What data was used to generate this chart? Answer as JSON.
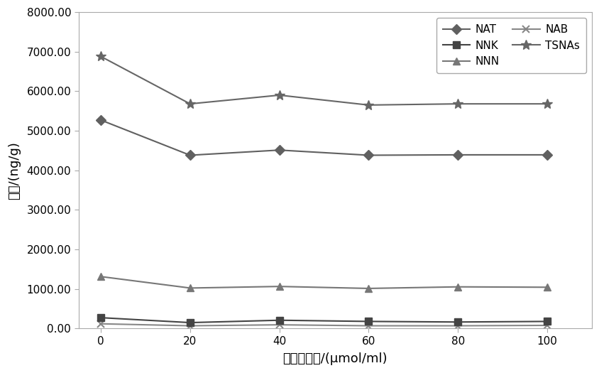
{
  "x": [
    0,
    20,
    40,
    60,
    80,
    100
  ],
  "NAT": [
    5270,
    4380,
    4510,
    4380,
    4390,
    4390
  ],
  "NNN": [
    1310,
    1020,
    1060,
    1010,
    1050,
    1040
  ],
  "NNK": [
    270,
    145,
    205,
    175,
    160,
    175
  ],
  "NAB": [
    115,
    65,
    90,
    65,
    65,
    75
  ],
  "TSNAs": [
    6880,
    5680,
    5900,
    5650,
    5680,
    5680
  ],
  "xlabel": "褮黑素浓度/(μmol/ml)",
  "ylabel": "含量/(ng/g)",
  "ylim": [
    0,
    8000
  ],
  "yticks": [
    0,
    1000,
    2000,
    3000,
    4000,
    5000,
    6000,
    7000,
    8000
  ],
  "ytick_labels": [
    "0.00",
    "1000.00",
    "2000.00",
    "3000.00",
    "4000.00",
    "5000.00",
    "6000.00",
    "7000.00",
    "8000.00"
  ],
  "bg_color": "#ffffff",
  "line_color_dark": "#555555",
  "line_color_mid": "#777777",
  "line_color_light": "#999999"
}
